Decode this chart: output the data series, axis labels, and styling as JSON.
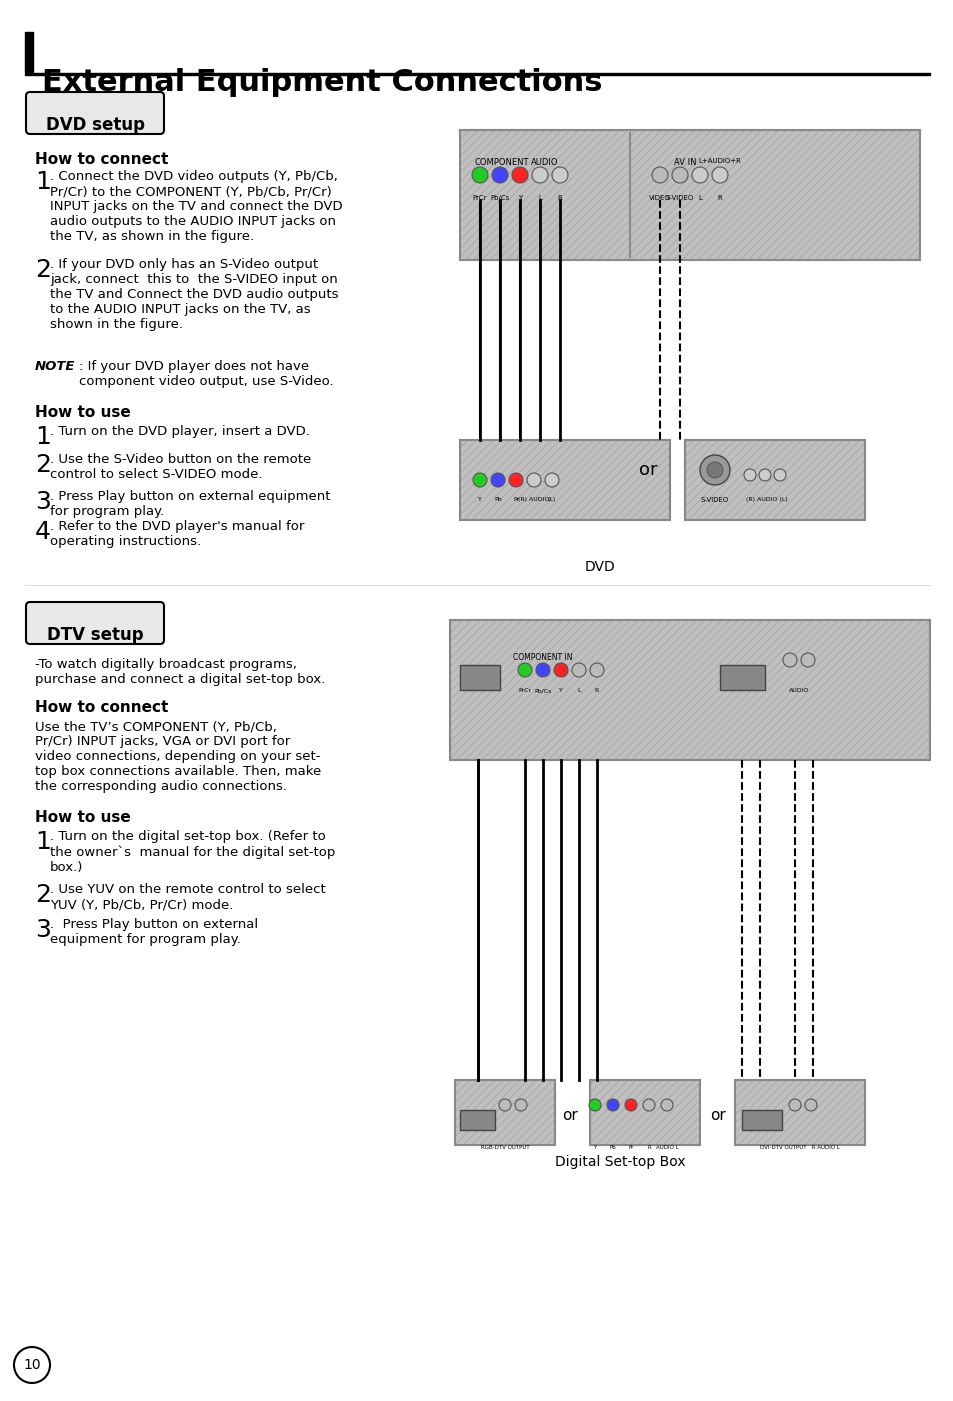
{
  "title": "External Equipment Connections",
  "bg_color": "#ffffff",
  "text_color": "#000000",
  "page_number": "10",
  "dvd_setup": {
    "label": "DVD setup",
    "how_to_connect_title": "How to connect",
    "step1": "1. Connect the DVD video outputs (Y, Pb/Cb,\nPr/Cr) to the COMPONENT (Y, Pb/Cb, Pr/Cr)\nINPUT jacks on the TV and connect the DVD\naudio outputs to the AUDIO INPUT jacks on\nthe TV, as shown in the figure.",
    "step2": "2. If your DVD only has an S-Video output\njack, connect  this to  the S-VIDEO input on\nthe TV and Connect the DVD audio outputs\nto the AUDIO INPUT jacks on the TV, as\nshown in the figure.",
    "note": "NOTE: If your DVD player does not have\ncomponent video output, use S-Video.",
    "how_to_use_title": "How to use",
    "use1": "1. Turn on the DVD player, insert a DVD.",
    "use2": "2. Use the S-Video button on the remote\ncontrol to select S-VIDEO mode.",
    "use3": "3. Press Play button on external equipment\nfor program play.",
    "use4": "4. Refer to the DVD player's manual for\noperating instructions.",
    "caption": "DVD"
  },
  "dtv_setup": {
    "label": "DTV setup",
    "intro": "-To watch digitally broadcast programs,\npurchase and connect a digital set-top box.",
    "how_to_connect_title": "How to connect",
    "connect_text": "Use the TV’s COMPONENT (Y, Pb/Cb,\nPr/Cr) INPUT jacks, VGA or DVI port for\nvideo connections, depending on your set-\ntop box connections available. Then, make\nthe corresponding audio connections.",
    "how_to_use_title": "How to use",
    "use1": "1. Turn on the digital set-top box. (Refer to\nthe owner`s  manual for the digital set-top\nbox.)",
    "use2": "2. Use YUV on the remote control to select\nYUV (Y, Pb/Cb, Pr/Cr) mode.",
    "use3": "3.  Press Play button on external\nequipment for program play.",
    "caption": "Digital Set-top Box"
  }
}
